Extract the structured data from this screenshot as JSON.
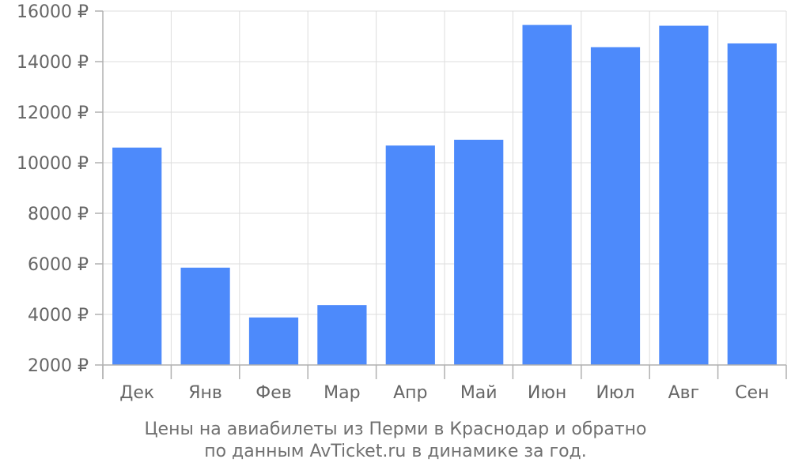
{
  "chart_data": {
    "type": "bar",
    "categories": [
      "Дек",
      "Янв",
      "Фев",
      "Мар",
      "Апр",
      "Май",
      "Июн",
      "Июл",
      "Авг",
      "Сен"
    ],
    "values": [
      10600,
      5850,
      3880,
      4370,
      10680,
      10910,
      15450,
      14570,
      15420,
      14720
    ],
    "ylim": [
      2000,
      16000
    ],
    "yticks": [
      2000,
      4000,
      6000,
      8000,
      10000,
      12000,
      14000,
      16000
    ],
    "ytick_suffix": " ₽",
    "grid": true,
    "bar_color": "#4d8afb",
    "grid_color": "#dddddd",
    "caption_lines": [
      "Цены на авиабилеты из Перми в Краснодар и обратно",
      "по данным AvTicket.ru в динамике за год."
    ]
  }
}
